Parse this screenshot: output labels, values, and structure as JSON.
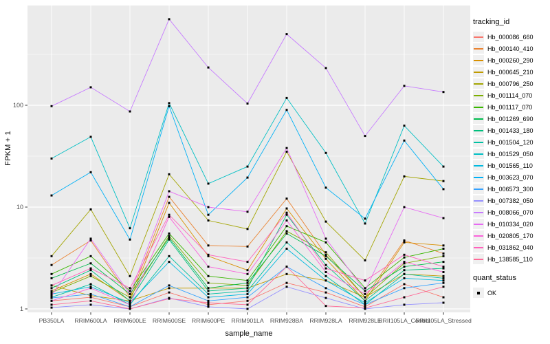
{
  "figure": {
    "background": "#FFFFFF",
    "panel_bg": "#EBEBEB",
    "grid_major": "#FFFFFF",
    "grid_minor": "#FFFFFF",
    "tick_color": "#333333",
    "tick_label_color": "#4D4D4D",
    "axis_title_color": "#000000",
    "legend_key_bg": "#F0F0F0"
  },
  "chart_data": {
    "type": "line",
    "title": "",
    "xlabel": "sample_name",
    "ylabel": "FPKM + 1",
    "y_scale": "log10",
    "ylim": [
      0.88,
      950
    ],
    "y_ticks": [
      1,
      10,
      100
    ],
    "y_tick_labels": [
      "1",
      "10",
      "100"
    ],
    "y_minor_ticks": [
      3.162,
      31.62,
      316.2
    ],
    "grid": "on",
    "legend_position": "right",
    "legend_title": "tracking_id",
    "point_legend": {
      "title": "quant_status",
      "items": [
        {
          "label": "OK",
          "shape": "square",
          "color": "#000000"
        }
      ]
    },
    "marker": {
      "shape": "square",
      "color": "#000000",
      "size": 3
    },
    "categories": [
      "PB350LA",
      "RRIM600LA",
      "RRIM600LE",
      "RRIM600SE",
      "RRIM600PE",
      "RRIM901LA",
      "RRIM928BA",
      "RRIM928LA",
      "RRIM928LE",
      "RRII105LA_Control",
      "RRII105LA_Stressed"
    ],
    "series": [
      {
        "name": "Hb_000086_660",
        "color": "#F8766D",
        "values": [
          1.2,
          1.3,
          1.05,
          1.45,
          1.1,
          1.2,
          1.8,
          1.45,
          1.05,
          1.75,
          1.3
        ]
      },
      {
        "name": "Hb_000140_410",
        "color": "#EA8331",
        "values": [
          2.7,
          4.7,
          1.3,
          12.6,
          4.2,
          4.1,
          12.1,
          3.4,
          1.3,
          4.7,
          3.5
        ]
      },
      {
        "name": "Hb_000260_290",
        "color": "#D89000",
        "values": [
          1.5,
          2.2,
          1.2,
          11.0,
          3.3,
          2.4,
          9.7,
          3.1,
          1.2,
          4.5,
          4.2
        ]
      },
      {
        "name": "Hb_000645_210",
        "color": "#C09B00",
        "values": [
          1.7,
          1.35,
          1.2,
          1.6,
          1.6,
          1.6,
          2.2,
          1.9,
          1.3,
          2.2,
          2.1
        ]
      },
      {
        "name": "Hb_000796_250",
        "color": "#A3A500",
        "values": [
          3.3,
          9.5,
          2.1,
          21,
          7.4,
          6.1,
          35,
          7.2,
          3.0,
          20,
          18
        ]
      },
      {
        "name": "Hb_001114_070",
        "color": "#7CAE00",
        "values": [
          1.45,
          2.1,
          1.3,
          5.2,
          1.8,
          1.7,
          5.8,
          3.6,
          1.3,
          2.8,
          3.3
        ]
      },
      {
        "name": "Hb_001117_070",
        "color": "#39B600",
        "values": [
          2.2,
          3.3,
          1.5,
          5.5,
          2.1,
          1.9,
          6.5,
          4.5,
          1.6,
          3.2,
          3.9
        ]
      },
      {
        "name": "Hb_001269_690",
        "color": "#00BB4E",
        "values": [
          2.0,
          2.8,
          1.4,
          5.0,
          1.6,
          1.8,
          5.5,
          3.3,
          1.5,
          2.6,
          2.9
        ]
      },
      {
        "name": "Hb_001433_180",
        "color": "#00BF7D",
        "values": [
          1.6,
          2.4,
          1.2,
          4.8,
          1.5,
          1.6,
          8.4,
          2.7,
          1.2,
          2.4,
          2.5
        ]
      },
      {
        "name": "Hb_001504_120",
        "color": "#00C1A3",
        "values": [
          1.3,
          1.75,
          1.1,
          3.3,
          1.4,
          1.5,
          4.5,
          2.1,
          1.1,
          2.2,
          2.0
        ]
      },
      {
        "name": "Hb_001529_050",
        "color": "#00BFC4",
        "values": [
          30,
          49,
          6.2,
          105,
          17,
          25,
          118,
          34,
          6.9,
          63,
          25
        ]
      },
      {
        "name": "Hb_001565_110",
        "color": "#00BAE0",
        "values": [
          1.4,
          1.65,
          1.15,
          2.9,
          1.3,
          1.4,
          3.9,
          1.9,
          1.15,
          2.0,
          1.9
        ]
      },
      {
        "name": "Hb_003623_070",
        "color": "#00B0F6",
        "values": [
          13,
          22,
          4.8,
          98,
          8.4,
          19.5,
          90,
          15.5,
          7.7,
          45,
          15
        ]
      },
      {
        "name": "Hb_006573_300",
        "color": "#35A2FF",
        "values": [
          1.28,
          1.4,
          1.05,
          1.7,
          1.2,
          1.3,
          2.6,
          1.6,
          1.1,
          1.6,
          1.8
        ]
      },
      {
        "name": "Hb_007382_050",
        "color": "#9590FF",
        "values": [
          1.03,
          1.1,
          1.0,
          1.28,
          1.05,
          1.0,
          1.65,
          1.28,
          1.0,
          1.1,
          1.15
        ]
      },
      {
        "name": "Hb_008066_070",
        "color": "#C77CFF",
        "values": [
          98,
          150,
          87,
          700,
          235,
          104,
          500,
          232,
          50,
          155,
          135
        ]
      },
      {
        "name": "Hb_010334_020",
        "color": "#E76BF3",
        "values": [
          1.35,
          4.9,
          1.4,
          14.3,
          10,
          9.0,
          38,
          4.9,
          1.5,
          10,
          7.8
        ]
      },
      {
        "name": "Hb_020805_170",
        "color": "#FA62DB",
        "values": [
          1.2,
          1.6,
          1.1,
          8.0,
          2.6,
          2.2,
          7.4,
          2.3,
          1.4,
          2.9,
          2.3
        ]
      },
      {
        "name": "Hb_031862_040",
        "color": "#FF62BC",
        "values": [
          1.7,
          2.5,
          1.6,
          8.4,
          3.4,
          2.9,
          8.8,
          2.5,
          1.9,
          3.4,
          2.6
        ]
      },
      {
        "name": "Hb_138585_110",
        "color": "#FF6A98",
        "values": [
          1.1,
          1.2,
          1.0,
          1.26,
          1.15,
          1.1,
          2.6,
          1.07,
          1.02,
          1.3,
          1.65
        ]
      }
    ]
  }
}
